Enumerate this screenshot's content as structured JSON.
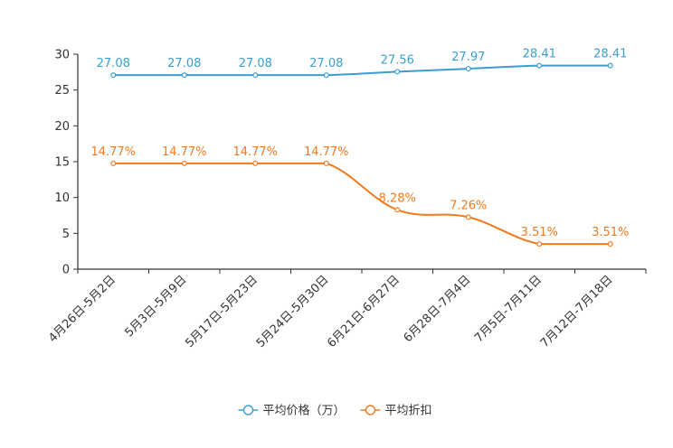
{
  "chart_data": {
    "type": "line",
    "title": "",
    "xlabel": "",
    "ylabel": "",
    "ylim": [
      0,
      30
    ],
    "yticks": [
      0,
      5,
      10,
      15,
      20,
      25,
      30
    ],
    "grid": false,
    "legend_position": "bottom-center",
    "categories": [
      "4月26日-5月2日",
      "5月3日-5月9日",
      "5月17日-5月23日",
      "5月24日-5月30日",
      "6月21日-6月27日",
      "6月28日-7月4日",
      "7月5日-7月11日",
      "7月12日-7月18日"
    ],
    "series": [
      {
        "name": "平均价格（万）",
        "color": "#3a9fd0",
        "values": [
          27.08,
          27.08,
          27.08,
          27.08,
          27.56,
          27.97,
          28.41,
          28.41
        ],
        "labels": [
          "27.08",
          "27.08",
          "27.08",
          "27.08",
          "27.56",
          "27.97",
          "28.41",
          "28.41"
        ]
      },
      {
        "name": "平均折扣",
        "color": "#f07a1e",
        "values": [
          14.77,
          14.77,
          14.77,
          14.77,
          8.28,
          7.26,
          3.51,
          3.51
        ],
        "labels": [
          "14.77%",
          "14.77%",
          "14.77%",
          "14.77%",
          "8.28%",
          "7.26%",
          "3.51%",
          "3.51%"
        ]
      }
    ]
  }
}
